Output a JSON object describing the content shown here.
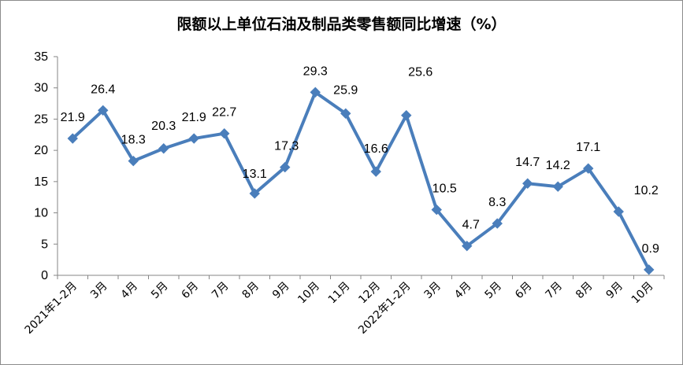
{
  "chart_data": {
    "type": "line",
    "title": "限额以上单位石油及制品类零售额同比增速（%）",
    "categories": [
      "2021年1-2月",
      "3月",
      "4月",
      "5月",
      "6月",
      "7月",
      "8月",
      "9月",
      "10月",
      "11月",
      "12月",
      "2022年1-2月",
      "3月",
      "4月",
      "5月",
      "6月",
      "7月",
      "8月",
      "9月",
      "10月"
    ],
    "series": [
      {
        "values": [
          21.9,
          26.4,
          18.3,
          20.3,
          21.9,
          22.7,
          13.1,
          17.3,
          29.3,
          25.9,
          16.6,
          25.6,
          10.5,
          4.7,
          8.3,
          14.7,
          14.2,
          17.1,
          10.2,
          0.9
        ],
        "labels": [
          "21.9",
          "26.4",
          "18.3",
          "20.3",
          "21.9",
          "22.7",
          "13.1",
          "17.3",
          "29.3",
          "25.9",
          "16.6",
          "25.6",
          "10.5",
          "4.7",
          "8.3",
          "14.7",
          "14.2",
          "17.1",
          "10.2",
          "0.9"
        ],
        "color": "#4a7ebb"
      }
    ],
    "ylim": [
      0,
      35
    ],
    "yticks": [
      0,
      5,
      10,
      15,
      20,
      25,
      30,
      35
    ],
    "grid": false,
    "legend": "none"
  }
}
